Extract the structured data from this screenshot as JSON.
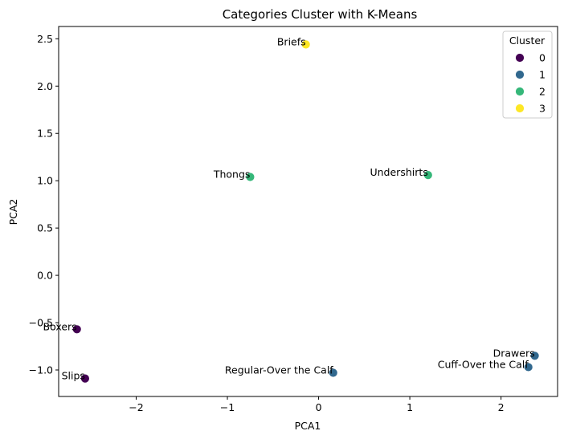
{
  "chart_data": {
    "type": "scatter",
    "title": "Categories Cluster with K-Means",
    "xlabel": "PCA1",
    "ylabel": "PCA2",
    "xlim": [
      -2.85,
      2.62
    ],
    "ylim": [
      -1.28,
      2.63
    ],
    "xticks": [
      -2,
      -1,
      0,
      1,
      2
    ],
    "yticks": [
      -1.0,
      -0.5,
      0.0,
      0.5,
      1.0,
      1.5,
      2.0,
      2.5
    ],
    "xtick_labels": [
      "−2",
      "−1",
      "0",
      "1",
      "2"
    ],
    "ytick_labels": [
      "−1.0",
      "−0.5",
      "0.0",
      "0.5",
      "1.0",
      "1.5",
      "2.0",
      "2.5"
    ],
    "grid": false,
    "legend": {
      "title": "Cluster",
      "placement": "top-right",
      "entries": [
        {
          "label": "0",
          "color": "#440154"
        },
        {
          "label": "1",
          "color": "#31688e"
        },
        {
          "label": "2",
          "color": "#35b779"
        },
        {
          "label": "3",
          "color": "#fde725"
        }
      ]
    },
    "points": [
      {
        "label": "Briefs",
        "x": -0.14,
        "y": 2.44,
        "cluster": 3
      },
      {
        "label": "Thongs",
        "x": -0.75,
        "y": 1.04,
        "cluster": 2
      },
      {
        "label": "Undershirts",
        "x": 1.2,
        "y": 1.06,
        "cluster": 2
      },
      {
        "label": "Boxers",
        "x": -2.65,
        "y": -0.57,
        "cluster": 0
      },
      {
        "label": "Slips",
        "x": -2.56,
        "y": -1.09,
        "cluster": 0
      },
      {
        "label": "Regular-Over the Calf",
        "x": 0.16,
        "y": -1.03,
        "cluster": 1
      },
      {
        "label": "Drawers",
        "x": 2.37,
        "y": -0.85,
        "cluster": 1
      },
      {
        "label": "Cuff-Over the Calf",
        "x": 2.3,
        "y": -0.97,
        "cluster": 1
      }
    ]
  }
}
